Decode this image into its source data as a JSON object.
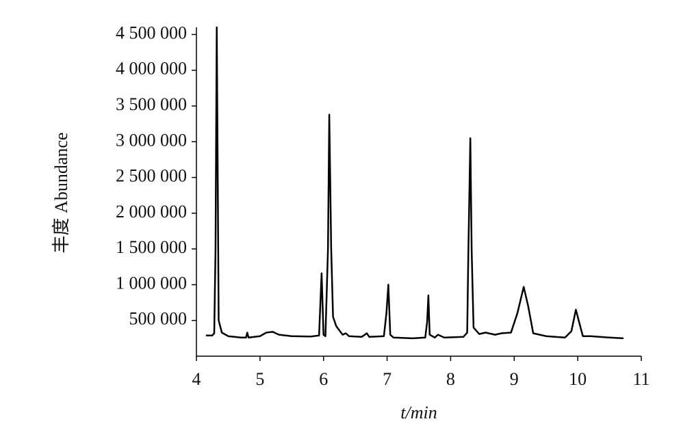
{
  "chart_data": {
    "type": "line",
    "x_label": "t/min",
    "y_label": "丰度 Abundance",
    "xlim": [
      4,
      11
    ],
    "xticks": [
      4,
      5,
      6,
      7,
      8,
      9,
      10,
      11
    ],
    "ylim": [
      0,
      4600000
    ],
    "yticks": [
      {
        "value": 500000,
        "label": "500 000"
      },
      {
        "value": 1000000,
        "label": "1 000 000"
      },
      {
        "value": 1500000,
        "label": "1 500 000"
      },
      {
        "value": 2000000,
        "label": "2 000 000"
      },
      {
        "value": 2500000,
        "label": "2 500 000"
      },
      {
        "value": 3000000,
        "label": "3 000 000"
      },
      {
        "value": 3500000,
        "label": "3 500 000"
      },
      {
        "value": 4000000,
        "label": "4 000 000"
      },
      {
        "value": 4500000,
        "label": "4 500 000"
      }
    ],
    "grid": false,
    "series": [
      {
        "color": "#000000",
        "x": [
          4.15,
          4.25,
          4.28,
          4.3,
          4.32,
          4.35,
          4.4,
          4.5,
          4.7,
          4.78,
          4.8,
          4.82,
          5.0,
          5.1,
          5.2,
          5.3,
          5.5,
          5.8,
          5.93,
          5.97,
          6.0,
          6.03,
          6.07,
          6.09,
          6.12,
          6.15,
          6.2,
          6.3,
          6.35,
          6.4,
          6.6,
          6.68,
          6.72,
          6.95,
          6.99,
          7.02,
          7.05,
          7.1,
          7.4,
          7.6,
          7.63,
          7.65,
          7.67,
          7.75,
          7.8,
          7.9,
          8.2,
          8.26,
          8.28,
          8.31,
          8.33,
          8.36,
          8.45,
          8.55,
          8.7,
          8.8,
          8.95,
          9.05,
          9.15,
          9.22,
          9.3,
          9.5,
          9.8,
          9.9,
          9.97,
          10.03,
          10.08,
          10.2,
          10.5,
          10.72
        ],
        "values": [
          290000,
          290000,
          320000,
          1500000,
          4600000,
          500000,
          330000,
          280000,
          260000,
          260000,
          330000,
          260000,
          280000,
          330000,
          340000,
          300000,
          280000,
          275000,
          290000,
          1160000,
          300000,
          280000,
          1500000,
          3380000,
          1500000,
          550000,
          420000,
          300000,
          320000,
          280000,
          270000,
          320000,
          270000,
          280000,
          600000,
          1000000,
          300000,
          260000,
          250000,
          260000,
          480000,
          850000,
          300000,
          260000,
          300000,
          260000,
          270000,
          330000,
          1500000,
          3050000,
          1500000,
          400000,
          310000,
          330000,
          300000,
          320000,
          330000,
          600000,
          970000,
          700000,
          320000,
          280000,
          260000,
          350000,
          650000,
          450000,
          280000,
          280000,
          260000,
          250000
        ]
      }
    ]
  }
}
